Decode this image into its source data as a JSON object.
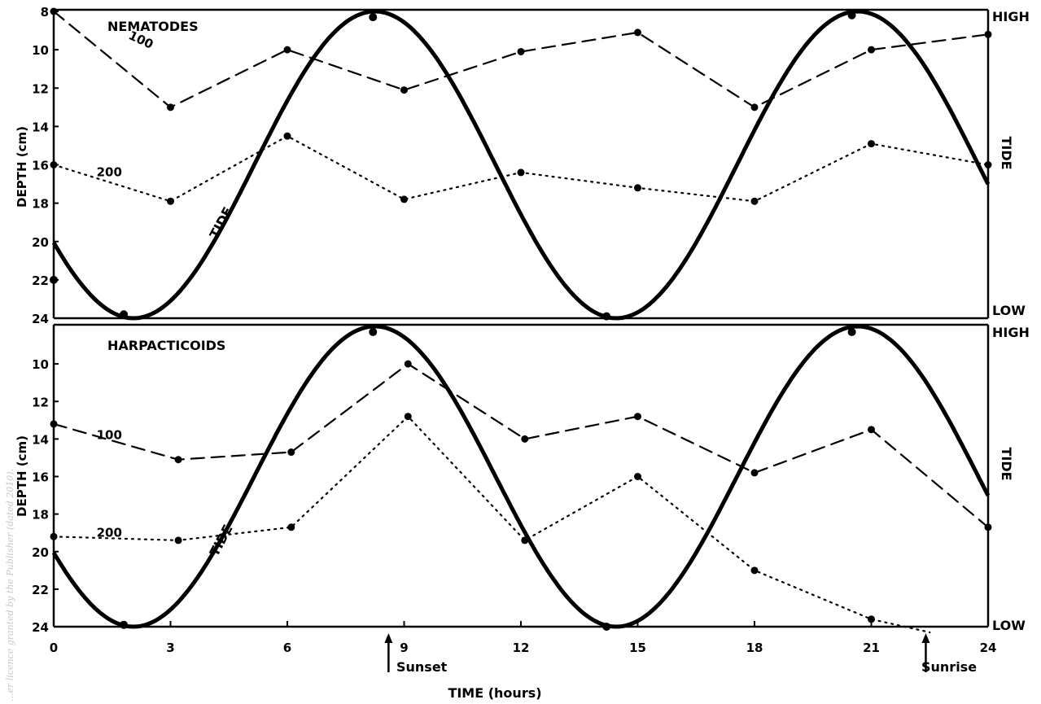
{
  "chart_data": [
    {
      "type": "line",
      "title": "NEMATODES",
      "ylabel": "DEPTH (cm)",
      "ylim": [
        8,
        24
      ],
      "y_reversed": true,
      "yticks": [
        "8",
        "10",
        "12",
        "14",
        "16",
        "18",
        "20",
        "22",
        "24"
      ],
      "right_labels": {
        "high": "HIGH",
        "tide": "TIDE",
        "low": "LOW"
      },
      "series": [
        {
          "name": "100",
          "style": "dashed",
          "x": [
            0,
            3,
            6,
            9,
            12,
            15,
            18,
            21,
            24
          ],
          "y": [
            8,
            13,
            10,
            12.1,
            10.1,
            9.1,
            13,
            10,
            9.2
          ]
        },
        {
          "name": "200",
          "style": "dotted",
          "x": [
            0,
            3,
            6,
            9,
            12,
            15,
            18,
            21,
            24
          ],
          "y": [
            16,
            17.9,
            14.5,
            17.8,
            16.4,
            17.2,
            17.9,
            14.9,
            16
          ]
        },
        {
          "name": "TIDE",
          "style": "solid-thick",
          "markers_x": [
            0,
            1.8,
            8.2,
            14.2,
            20.5
          ],
          "markers_y": [
            22,
            23.8,
            8.3,
            23.9,
            8.2
          ]
        }
      ]
    },
    {
      "type": "line",
      "title": "HARPACTICOIDS",
      "ylabel": "DEPTH (cm)",
      "ylim": [
        8,
        24
      ],
      "y_reversed": true,
      "yticks": [
        "10",
        "12",
        "14",
        "16",
        "18",
        "20",
        "22",
        "24"
      ],
      "right_labels": {
        "high": "HIGH",
        "tide": "TIDE",
        "low": "LOW"
      },
      "series": [
        {
          "name": "100",
          "style": "dashed",
          "x": [
            0,
            3.2,
            6.1,
            9.1,
            12.1,
            15,
            18,
            21,
            24
          ],
          "y": [
            13.2,
            15.1,
            14.7,
            10,
            14,
            12.8,
            15.8,
            13.5,
            18.7
          ]
        },
        {
          "name": "200",
          "style": "dotted",
          "x": [
            0,
            3.2,
            6.1,
            9.1,
            12.1,
            15,
            18,
            21,
            22.5
          ],
          "y": [
            19.2,
            19.4,
            18.7,
            12.8,
            19.4,
            16,
            21,
            23.6,
            24.3
          ]
        },
        {
          "name": "TIDE",
          "style": "solid-thick",
          "markers_x": [
            1.8,
            8.2,
            14.2,
            20.5
          ],
          "markers_y": [
            23.9,
            8.3,
            24,
            8.3
          ]
        }
      ]
    }
  ],
  "x_axis": {
    "label": "TIME (hours)",
    "ticks": [
      "0",
      "3",
      "6",
      "9",
      "12",
      "15",
      "18",
      "21",
      "24"
    ],
    "xlim": [
      0,
      24
    ]
  },
  "annotations": {
    "sunset": {
      "text": "Sunset",
      "x": 8.6
    },
    "sunrise": {
      "text": "Sunrise",
      "x": 22.4
    }
  },
  "watermark": "...er licence granted by the Publisher (dated 2010).",
  "colors": {
    "ink": "#000000",
    "background": "#ffffff",
    "watermark": "#c8c8c8"
  }
}
